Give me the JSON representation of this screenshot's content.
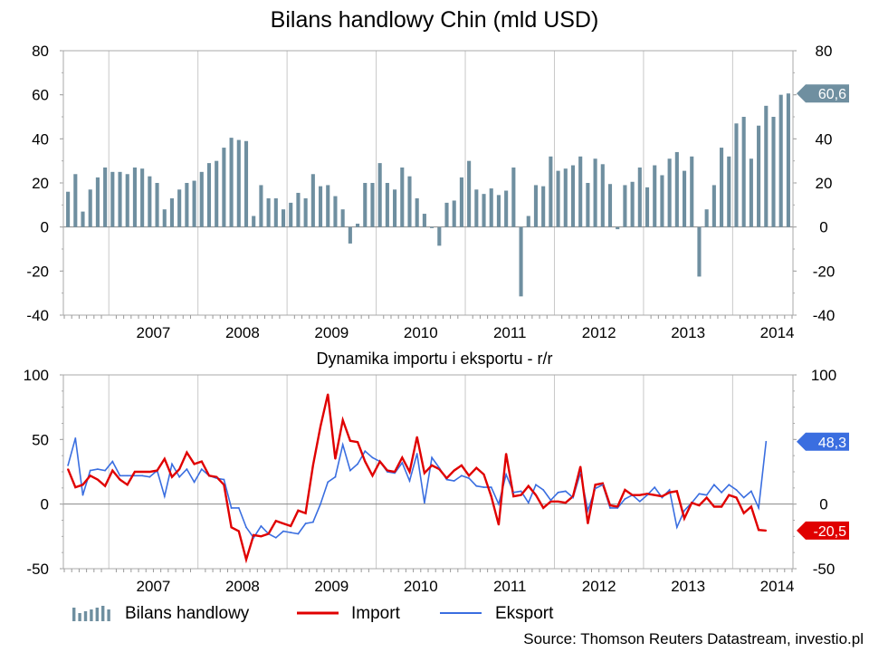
{
  "title": "Bilans handlowy Chin (mld USD)",
  "subtitle": "Dynamika importu i eksportu - r/r",
  "source": "Source: Thomson Reuters Datastream, investio.pl",
  "colors": {
    "bar": "#6f8fa0",
    "import": "#e00000",
    "export": "#3a6ee0",
    "grid": "#c8c8c8"
  },
  "legend": {
    "bars_label": "Bilans handlowy",
    "import_label": "Import",
    "export_label": "Eksport"
  },
  "last_labels": {
    "trade": "60,6",
    "export": "48,3",
    "import": "-20,5"
  },
  "chart_data": [
    {
      "type": "bar",
      "title": "Bilans handlowy Chin (mld USD)",
      "x_start": "2006-07",
      "years": [
        "2007",
        "2008",
        "2009",
        "2010",
        "2011",
        "2012",
        "2013",
        "2014"
      ],
      "ylim": [
        -40,
        80
      ],
      "yticks": [
        -40,
        -20,
        0,
        20,
        40,
        60,
        80
      ],
      "grid": "vertical",
      "series": [
        {
          "name": "Bilans handlowy",
          "values": [
            16,
            24,
            7,
            17,
            22.5,
            27,
            25,
            25,
            24,
            27,
            26.5,
            23,
            20,
            8,
            13,
            17,
            20,
            21,
            25,
            29,
            30,
            36,
            40.5,
            39.5,
            39,
            5,
            19,
            13,
            13,
            8,
            11,
            15.5,
            13,
            24,
            18.5,
            19,
            14,
            8,
            -7.5,
            1.5,
            20,
            20,
            29,
            20,
            17,
            27,
            23,
            13,
            6,
            -0.5,
            -8.5,
            11,
            12,
            22.5,
            30,
            17,
            15,
            17.5,
            14.5,
            16.5,
            27,
            -31.5,
            5,
            19,
            18.5,
            32,
            25.5,
            26.5,
            28,
            32,
            20,
            31,
            28.5,
            19.5,
            -1,
            19,
            20.5,
            27,
            18,
            28,
            23.5,
            31,
            34,
            25.5,
            32,
            -22.5,
            8,
            19,
            36,
            32,
            47,
            50,
            31,
            46,
            55,
            50,
            60,
            60.6
          ]
        }
      ]
    },
    {
      "type": "line",
      "title": "Dynamika importu i eksportu - r/r",
      "x_start": "2006-07",
      "years": [
        "2007",
        "2008",
        "2009",
        "2010",
        "2011",
        "2012",
        "2013",
        "2014"
      ],
      "ylim": [
        -50,
        100
      ],
      "yticks": [
        -50,
        0,
        50,
        100
      ],
      "grid": "vertical",
      "series": [
        {
          "name": "Import",
          "values": [
            27,
            13,
            15,
            22,
            19,
            14,
            26,
            19,
            15,
            25,
            25,
            25,
            26,
            35,
            21,
            27,
            40,
            31,
            33,
            22,
            21,
            15,
            -18,
            -21,
            -43,
            -24,
            -25,
            -23,
            -13,
            -15,
            -17,
            -5,
            -7,
            30,
            60,
            85,
            35,
            65,
            49,
            48,
            33,
            22,
            33,
            26,
            25,
            36,
            25,
            52,
            24,
            30,
            27,
            20,
            26,
            30,
            22,
            28,
            23,
            6,
            -16,
            39,
            6,
            7,
            14,
            7,
            -3,
            2,
            2,
            1,
            6,
            29,
            -15,
            15,
            16,
            -1,
            -2,
            11,
            7,
            7,
            8,
            7,
            6,
            9,
            10,
            -11,
            1,
            -1,
            5,
            -2,
            -2,
            7,
            5,
            -7,
            -2,
            -20,
            -20.5
          ]
        },
        {
          "name": "Eksport",
          "values": [
            30,
            51,
            7,
            26,
            27,
            26,
            33,
            22,
            22,
            22,
            22,
            21,
            26,
            6,
            31,
            21,
            27,
            17,
            27,
            22,
            20,
            19,
            -3,
            -3,
            -18,
            -26,
            -17,
            -23,
            -26,
            -21,
            -22,
            -23,
            -15,
            -14,
            0,
            17,
            21,
            46,
            26,
            31,
            41,
            36,
            33,
            25,
            24,
            32,
            18,
            39,
            1,
            36,
            28,
            19,
            18,
            22,
            20,
            14,
            13,
            13,
            0,
            23,
            9,
            10,
            1,
            15,
            11,
            3,
            9,
            10,
            5,
            24,
            -5,
            12,
            15,
            -3,
            -3,
            4,
            7,
            2,
            7,
            13,
            5,
            11,
            -18,
            -5,
            1,
            8,
            7,
            15,
            9,
            15,
            11,
            5,
            10,
            -3,
            48.3
          ]
        }
      ]
    }
  ]
}
